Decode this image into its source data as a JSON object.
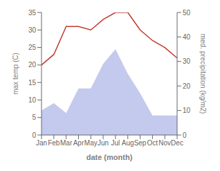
{
  "chart_data": {
    "type": "line",
    "categories": [
      "Jan",
      "Feb",
      "Mar",
      "Apr",
      "May",
      "Jun",
      "Jul",
      "Aug",
      "Sep",
      "Oct",
      "Nov",
      "Dec"
    ],
    "xlabel": "date (month)",
    "ylabel": "max temp (C)",
    "y2label": "med. precipitation (kg/m2)",
    "series": [
      {
        "type": "area",
        "axis": "y2",
        "color": "#b0b8e8",
        "values": [
          10,
          13,
          9,
          19,
          19,
          29,
          35,
          25,
          17,
          8,
          8,
          8
        ]
      },
      {
        "type": "line",
        "color": "#c0392b",
        "values": [
          20,
          23,
          31,
          31,
          30,
          33,
          35,
          35,
          30,
          27,
          25,
          22
        ]
      }
    ],
    "ylim": [
      0,
      35
    ],
    "yticks": [
      0,
      5,
      10,
      15,
      20,
      25,
      30,
      35
    ],
    "y2lim": [
      0,
      50
    ],
    "y2ticks": [
      0,
      10,
      20,
      30,
      40,
      50
    ],
    "grid": false
  }
}
